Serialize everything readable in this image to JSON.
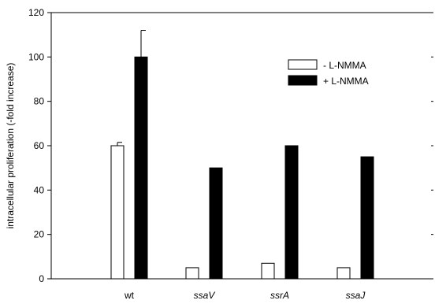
{
  "chart_data": {
    "type": "bar",
    "title": "",
    "xlabel": "",
    "ylabel": "intracellular proliferation (-fold increase)",
    "ylim": [
      0,
      120
    ],
    "yticks": [
      0,
      20,
      40,
      60,
      80,
      100,
      120
    ],
    "categories": [
      "wt",
      "ssaV",
      "ssrA",
      "ssaJ"
    ],
    "categories_italic": [
      false,
      true,
      true,
      true
    ],
    "series": [
      {
        "name": "- L-NMMA",
        "fill": "#ffffff",
        "values": [
          60,
          5,
          7,
          5
        ],
        "errors": [
          1.5,
          0,
          0,
          0
        ]
      },
      {
        "name": "+ L-NMMA",
        "fill": "#000000",
        "values": [
          100,
          50,
          60,
          55
        ],
        "errors": [
          12,
          0,
          0,
          0
        ]
      }
    ],
    "grid": false,
    "legend_position": "top-right"
  }
}
